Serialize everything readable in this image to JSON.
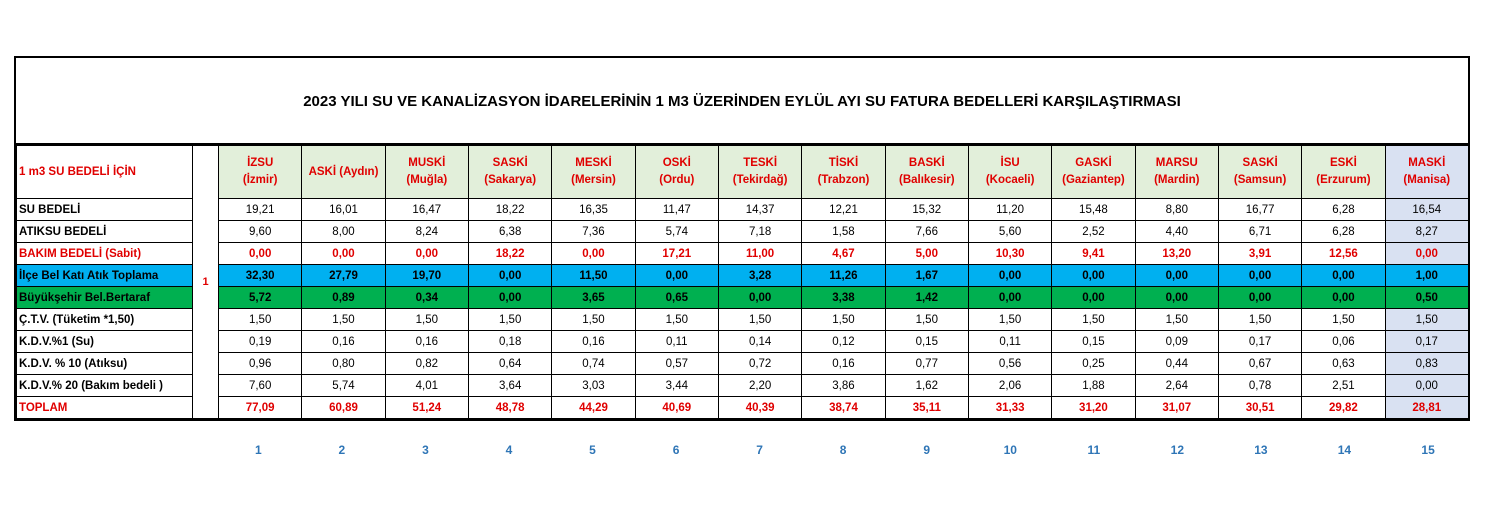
{
  "title": "2023 YILI SU VE KANALİZASYON İDARELERİNİN 1 M3 ÜZERİNDEN EYLÜL AYI SU FATURA BEDELLERİ KARŞILAŞTIRMASI",
  "header_label": "1 m3 SU BEDELİ İÇİN",
  "side_marker": "1",
  "columns": [
    {
      "name": "İZSU",
      "city": "(İzmir)"
    },
    {
      "name": "ASKİ (Aydın)",
      "city": ""
    },
    {
      "name": "MUSKİ",
      "city": "(Muğla)"
    },
    {
      "name": "SASKİ",
      "city": "(Sakarya)"
    },
    {
      "name": "MESKİ",
      "city": "(Mersin)"
    },
    {
      "name": "OSKİ",
      "city": "(Ordu)"
    },
    {
      "name": "TESKİ",
      "city": "(Tekirdağ)"
    },
    {
      "name": "TİSKİ",
      "city": "(Trabzon)"
    },
    {
      "name": "BASKİ",
      "city": "(Balıkesir)"
    },
    {
      "name": "İSU",
      "city": "(Kocaeli)"
    },
    {
      "name": "GASKİ",
      "city": "(Gaziantep)"
    },
    {
      "name": "MARSU",
      "city": "(Mardin)"
    },
    {
      "name": "SASKİ",
      "city": "(Samsun)"
    },
    {
      "name": "ESKİ",
      "city": "(Erzurum)"
    },
    {
      "name": "MASKİ",
      "city": "(Manisa)"
    }
  ],
  "rows": [
    {
      "label": "SU BEDELİ",
      "style": "normal",
      "values": [
        "19,21",
        "16,01",
        "16,47",
        "18,22",
        "16,35",
        "11,47",
        "14,37",
        "12,21",
        "15,32",
        "11,20",
        "15,48",
        "8,80",
        "16,77",
        "6,28",
        "16,54"
      ]
    },
    {
      "label": "ATIKSU BEDELİ",
      "style": "normal",
      "values": [
        "9,60",
        "8,00",
        "8,24",
        "6,38",
        "7,36",
        "5,74",
        "7,18",
        "1,58",
        "7,66",
        "5,60",
        "2,52",
        "4,40",
        "6,71",
        "6,28",
        "8,27"
      ]
    },
    {
      "label": "BAKIM BEDELİ (Sabit)",
      "style": "red",
      "values": [
        "0,00",
        "0,00",
        "0,00",
        "18,22",
        "0,00",
        "17,21",
        "11,00",
        "4,67",
        "5,00",
        "10,30",
        "9,41",
        "13,20",
        "3,91",
        "12,56",
        "0,00"
      ]
    },
    {
      "label": "İlçe Bel Katı Atık Toplama",
      "style": "blue",
      "values": [
        "32,30",
        "27,79",
        "19,70",
        "0,00",
        "11,50",
        "0,00",
        "3,28",
        "11,26",
        "1,67",
        "0,00",
        "0,00",
        "0,00",
        "0,00",
        "0,00",
        "1,00"
      ]
    },
    {
      "label": "Büyükşehir Bel.Bertaraf",
      "style": "green",
      "values": [
        "5,72",
        "0,89",
        "0,34",
        "0,00",
        "3,65",
        "0,65",
        "0,00",
        "3,38",
        "1,42",
        "0,00",
        "0,00",
        "0,00",
        "0,00",
        "0,00",
        "0,50"
      ]
    },
    {
      "label": "Ç.T.V. (Tüketim *1,50)",
      "style": "normal",
      "values": [
        "1,50",
        "1,50",
        "1,50",
        "1,50",
        "1,50",
        "1,50",
        "1,50",
        "1,50",
        "1,50",
        "1,50",
        "1,50",
        "1,50",
        "1,50",
        "1,50",
        "1,50"
      ]
    },
    {
      "label": "K.D.V.%1  (Su)",
      "style": "normal",
      "values": [
        "0,19",
        "0,16",
        "0,16",
        "0,18",
        "0,16",
        "0,11",
        "0,14",
        "0,12",
        "0,15",
        "0,11",
        "0,15",
        "0,09",
        "0,17",
        "0,06",
        "0,17"
      ]
    },
    {
      "label": "K.D.V. % 10 (Atıksu)",
      "style": "normal",
      "values": [
        "0,96",
        "0,80",
        "0,82",
        "0,64",
        "0,74",
        "0,57",
        "0,72",
        "0,16",
        "0,77",
        "0,56",
        "0,25",
        "0,44",
        "0,67",
        "0,63",
        "0,83"
      ]
    },
    {
      "label": "K.D.V.% 20 (Bakım bedeli )",
      "style": "normal",
      "values": [
        "7,60",
        "5,74",
        "4,01",
        "3,64",
        "3,03",
        "3,44",
        "2,20",
        "3,86",
        "1,62",
        "2,06",
        "1,88",
        "2,64",
        "0,78",
        "2,51",
        "0,00"
      ]
    },
    {
      "label": "TOPLAM",
      "style": "red",
      "values": [
        "77,09",
        "60,89",
        "51,24",
        "48,78",
        "44,29",
        "40,69",
        "40,39",
        "38,74",
        "35,11",
        "31,33",
        "31,20",
        "31,07",
        "30,51",
        "29,82",
        "28,81"
      ]
    }
  ],
  "indices": [
    "1",
    "2",
    "3",
    "4",
    "5",
    "6",
    "7",
    "8",
    "9",
    "10",
    "11",
    "12",
    "13",
    "14",
    "15"
  ],
  "colors": {
    "header_bg": "#e2efda",
    "highlight_bg": "#d9e1f2",
    "blue_row": "#00b0f0",
    "green_row": "#00b050",
    "red_text": "#e00000",
    "index_text": "#2e75b6"
  }
}
